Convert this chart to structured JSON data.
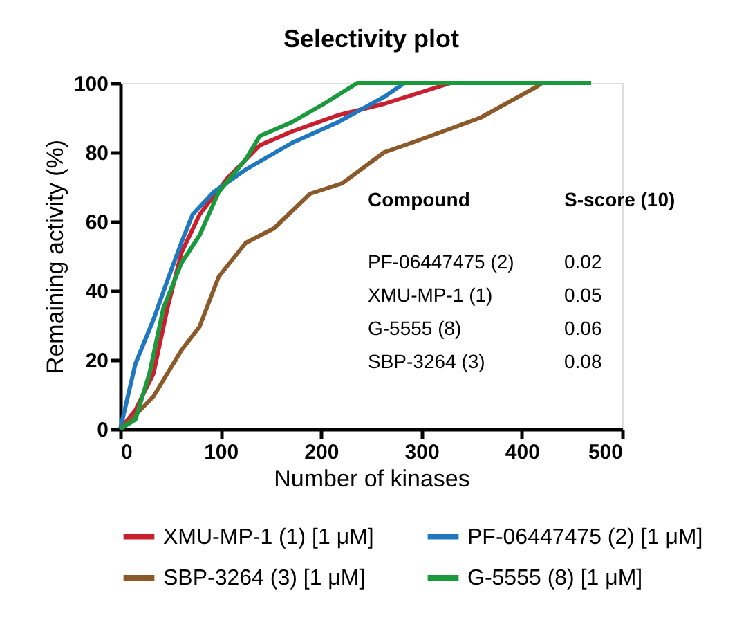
{
  "chart_data": {
    "type": "line",
    "title": "Selectivity plot",
    "xlabel": "Number of kinases",
    "ylabel": "Remaining activity (%)",
    "xlim": [
      0,
      500
    ],
    "ylim": [
      0,
      100
    ],
    "xticks": [
      0,
      100,
      200,
      300,
      400,
      500
    ],
    "yticks": [
      0,
      20,
      40,
      60,
      80,
      100
    ],
    "grid": false,
    "legend": "bottom",
    "marker": "none",
    "line_style": "solid",
    "series": [
      {
        "name": "XMU-MP-1 (1) [1 μM]",
        "color": "#c8202f",
        "x": [
          0,
          15,
          33,
          47,
          61,
          79,
          107,
          139,
          171,
          217,
          263,
          329
        ],
        "values": [
          0,
          5.4,
          16,
          35,
          51,
          62,
          72.6,
          82,
          86,
          90.7,
          94,
          100
        ]
      },
      {
        "name": "PF-06447475 (2) [1 μM]",
        "color": "#1f77c0",
        "x": [
          0,
          15,
          33,
          47,
          61,
          72,
          93,
          125,
          171,
          217,
          263,
          283
        ],
        "values": [
          0,
          18.8,
          31.6,
          43,
          54,
          62,
          68.5,
          75,
          82.7,
          88.7,
          96,
          100
        ]
      },
      {
        "name": "SBP-3264 (3) [1 μM]",
        "color": "#8b5a2b",
        "x": [
          0,
          15,
          33,
          61,
          79,
          98,
          125,
          153,
          189,
          221,
          263,
          290,
          359,
          414,
          420
        ],
        "values": [
          0,
          4,
          9.4,
          22.8,
          29.6,
          44,
          53.8,
          58,
          68,
          71,
          80,
          82.7,
          90,
          98.8,
          100
        ]
      },
      {
        "name": "G-5555 (8) [1 μM]",
        "color": "#1a9a3c",
        "x": [
          0,
          15,
          29,
          43,
          61,
          79,
          98,
          125,
          139,
          171,
          203,
          236,
          469
        ],
        "values": [
          0,
          2.7,
          16,
          35,
          48,
          56,
          68.5,
          78,
          84.7,
          88.7,
          94,
          100,
          100
        ]
      }
    ],
    "annotations": [
      "Compound",
      "S-score (10)",
      "PF-06447475 (2)",
      "0.02",
      "XMU-MP-1 (1)",
      "0.05",
      "G-5555 (8)",
      "0.06",
      "SBP-3264 (3)",
      "0.08"
    ]
  }
}
